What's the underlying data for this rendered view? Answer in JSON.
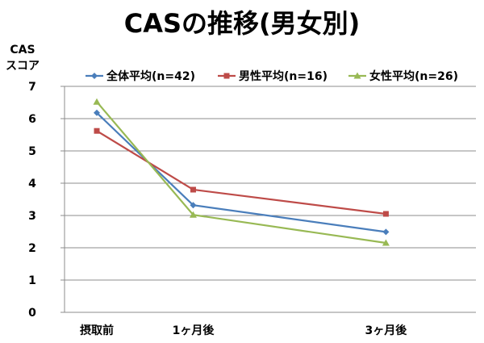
{
  "chart_data": {
    "type": "line",
    "title": "CASの推移(男女別)",
    "ylabel_line1": "CAS",
    "ylabel_line2": "スコア",
    "xlabel": "",
    "categories": [
      "摂取前",
      "1ヶ月後",
      "3ヶ月後"
    ],
    "x": [
      0,
      1,
      3
    ],
    "ylim": [
      0,
      7
    ],
    "yticks": [
      0,
      1,
      2,
      3,
      4,
      5,
      6,
      7
    ],
    "grid": true,
    "legend_position": "top",
    "series": [
      {
        "name": "全体平均(n=42)",
        "values": [
          6.18,
          3.32,
          2.49
        ],
        "color": "#4a7ebb",
        "marker": "diamond"
      },
      {
        "name": "男性平均(n=16)",
        "values": [
          5.62,
          3.8,
          3.05
        ],
        "color": "#be4b48",
        "marker": "square"
      },
      {
        "name": "女性平均(n=26)",
        "values": [
          6.52,
          3.02,
          2.15
        ],
        "color": "#98b954",
        "marker": "triangle"
      }
    ]
  }
}
